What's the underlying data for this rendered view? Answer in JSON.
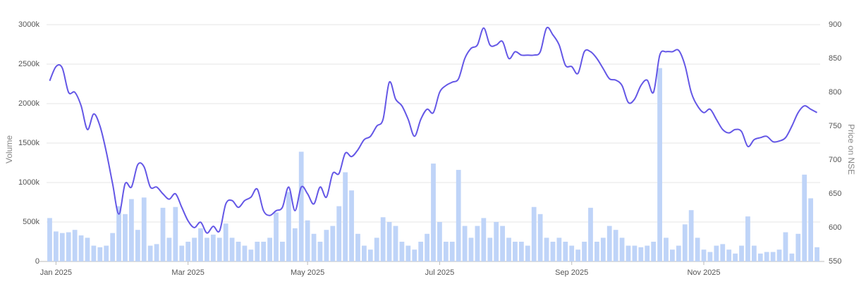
{
  "chart_data": {
    "type": "combo",
    "ylabel": "Volume",
    "y2label": "Price on NSE",
    "categories": [
      null,
      "Jan 2025",
      null,
      null,
      null,
      null,
      null,
      null,
      null,
      null,
      null,
      null,
      null,
      null,
      null,
      null,
      null,
      null,
      null,
      null,
      null,
      null,
      "Mar 2025",
      null,
      null,
      null,
      null,
      null,
      null,
      null,
      null,
      null,
      null,
      null,
      null,
      null,
      null,
      null,
      null,
      null,
      null,
      "May 2025",
      null,
      null,
      null,
      null,
      null,
      null,
      null,
      null,
      null,
      null,
      null,
      null,
      null,
      null,
      null,
      null,
      null,
      null,
      null,
      null,
      "Jul 2025",
      null,
      null,
      null,
      null,
      null,
      null,
      null,
      null,
      null,
      null,
      null,
      null,
      null,
      null,
      null,
      null,
      null,
      null,
      null,
      null,
      "Sep 2025",
      null,
      null,
      null,
      null,
      null,
      null,
      null,
      null,
      null,
      null,
      null,
      null,
      null,
      null,
      null,
      null,
      null,
      null,
      null,
      null,
      "Nov 2025",
      null,
      null,
      null,
      null,
      null,
      null,
      null,
      null,
      null,
      null,
      null,
      null,
      null,
      null,
      null,
      null,
      null,
      null
    ],
    "series": [
      {
        "type": "bar",
        "color": "#bfd4f8",
        "values": [
          550,
          380,
          360,
          370,
          400,
          330,
          300,
          200,
          180,
          200,
          360,
          700,
          600,
          790,
          400,
          810,
          200,
          220,
          680,
          300,
          690,
          200,
          250,
          300,
          420,
          300,
          340,
          300,
          480,
          300,
          250,
          200,
          150,
          250,
          250,
          300,
          620,
          250,
          880,
          420,
          1390,
          520,
          350,
          250,
          400,
          450,
          700,
          1130,
          900,
          350,
          200,
          150,
          300,
          560,
          500,
          450,
          250,
          200,
          150,
          250,
          350,
          1240,
          500,
          250,
          250,
          1160,
          450,
          300,
          450,
          550,
          300,
          500,
          450,
          300,
          250,
          250,
          200,
          690,
          600,
          300,
          250,
          300,
          250,
          200,
          150,
          250,
          680,
          250,
          300,
          450,
          400,
          300,
          200,
          200,
          180,
          200,
          250,
          2450,
          300,
          150,
          200,
          470,
          650,
          300,
          150,
          120,
          200,
          220,
          150,
          100,
          200,
          570,
          200,
          100,
          120,
          120,
          150,
          370,
          100,
          350,
          1100,
          800,
          180
        ]
      },
      {
        "type": "line",
        "axis": "y2",
        "color": "#6457e6",
        "values": [
          817,
          838,
          836,
          800,
          800,
          780,
          745,
          768,
          750,
          712,
          665,
          620,
          665,
          660,
          693,
          690,
          660,
          660,
          650,
          642,
          650,
          630,
          610,
          600,
          608,
          592,
          602,
          595,
          635,
          640,
          630,
          640,
          645,
          657,
          625,
          618,
          625,
          630,
          660,
          625,
          660,
          650,
          635,
          660,
          645,
          680,
          680,
          710,
          705,
          715,
          730,
          735,
          750,
          760,
          815,
          790,
          780,
          760,
          735,
          760,
          775,
          770,
          800,
          810,
          815,
          820,
          850,
          865,
          870,
          895,
          870,
          870,
          875,
          850,
          860,
          855,
          855,
          855,
          860,
          895,
          885,
          870,
          840,
          838,
          828,
          860,
          860,
          850,
          835,
          820,
          818,
          810,
          785,
          790,
          810,
          818,
          800,
          855,
          860,
          860,
          862,
          840,
          800,
          780,
          770,
          775,
          760,
          745,
          740,
          745,
          742,
          720,
          730,
          733,
          735,
          727,
          728,
          733,
          750,
          770,
          780,
          775,
          770
        ]
      }
    ],
    "ylim": [
      0,
      3000
    ],
    "yticks": [
      0,
      {
        "value": 500,
        "label": "500k"
      },
      {
        "value": 1000,
        "label": "1000k"
      },
      {
        "value": 1500,
        "label": "1500k"
      },
      {
        "value": 2000,
        "label": "2000k"
      },
      {
        "value": 2500,
        "label": "2500k"
      },
      {
        "value": 3000,
        "label": "3000k"
      }
    ],
    "y2lim": [
      550,
      900
    ],
    "y2ticks": [
      550,
      600,
      650,
      700,
      750,
      800,
      850,
      900
    ],
    "grid": true
  }
}
